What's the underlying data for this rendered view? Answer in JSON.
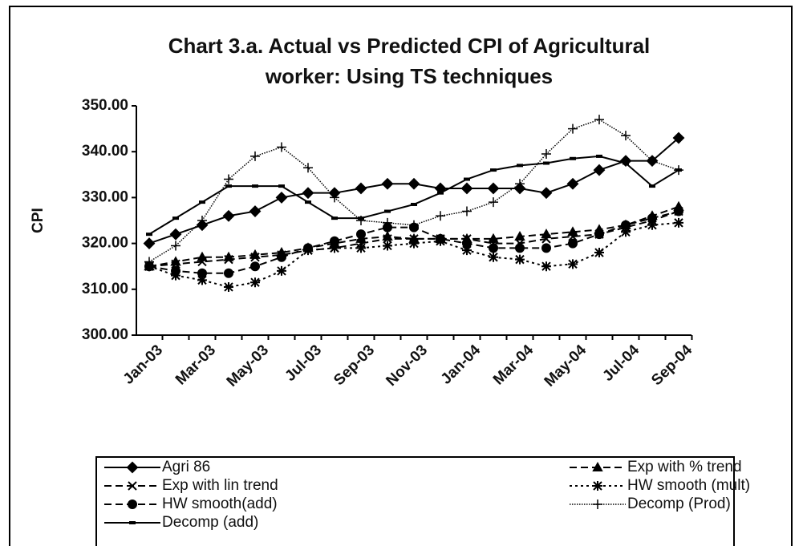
{
  "chart_data": {
    "type": "line",
    "title": "Chart 3.a. Actual vs Predicted CPI of Agricultural\nworker: Using TS techniques",
    "y_label": "CPI",
    "categories": [
      "Jan-03",
      null,
      "Mar-03",
      null,
      "May-03",
      null,
      "Jul-03",
      null,
      "Sep-03",
      null,
      "Nov-03",
      null,
      "Jan-04",
      null,
      "Mar-04",
      null,
      "May-04",
      null,
      "Jul-04",
      null,
      "Sep-04"
    ],
    "ylim": [
      300,
      350
    ],
    "yticks": [
      {
        "value": 300,
        "label": "300.00"
      },
      {
        "value": 310,
        "label": "310.00"
      },
      {
        "value": 320,
        "label": "320.00"
      },
      {
        "value": 330,
        "label": "330.00"
      },
      {
        "value": 340,
        "label": "340.00"
      },
      {
        "value": 350,
        "label": "350.00"
      }
    ],
    "legend": "bottom",
    "series": [
      {
        "name": "Agri 86",
        "color": "#000000",
        "marker": "diamond",
        "dash": "solid",
        "values": [
          320,
          322,
          324,
          326,
          327,
          330,
          331,
          331,
          332,
          333,
          333,
          332,
          332,
          332,
          332,
          331,
          333,
          336,
          338,
          338,
          343
        ]
      },
      {
        "name": "Exp with % trend",
        "color": "#000000",
        "marker": "triangle",
        "dash": "dashed",
        "values": [
          315,
          316,
          317,
          317,
          317.5,
          318,
          319,
          320,
          321,
          321.5,
          321,
          321,
          321,
          321,
          321.5,
          322,
          322.5,
          323,
          324,
          326,
          328
        ]
      },
      {
        "name": "Exp with lin trend",
        "color": "#000000",
        "marker": "x",
        "dash": "dashed",
        "values": [
          315,
          315.5,
          316,
          316.5,
          317,
          317.5,
          318.5,
          319,
          320,
          321,
          321,
          321,
          321,
          320,
          320,
          321,
          321.5,
          322,
          323.5,
          325,
          327
        ]
      },
      {
        "name": "HW smooth (mult)",
        "color": "#000000",
        "marker": "asterisk",
        "dash": "dotted",
        "values": [
          315,
          313,
          312,
          310.5,
          311.5,
          314,
          318.5,
          319,
          319,
          319.5,
          320,
          320.5,
          318.5,
          317,
          316.5,
          315,
          315.5,
          318,
          322.5,
          324,
          324.5
        ]
      },
      {
        "name": "HW smooth(add)",
        "color": "#000000",
        "marker": "circle",
        "dash": "dashed",
        "values": [
          315,
          314,
          313.5,
          313.5,
          315,
          317,
          319,
          320.5,
          322,
          323.5,
          323.5,
          321,
          320,
          319,
          319,
          319,
          320,
          322,
          324,
          325.5,
          327
        ]
      },
      {
        "name": "Decomp (Prod)",
        "color": "#000000",
        "marker": "plus",
        "dash": "thin",
        "values": [
          316,
          319.5,
          325,
          334,
          339,
          341,
          336.5,
          330,
          325,
          324.5,
          324,
          326,
          327,
          329,
          333,
          339.5,
          345,
          347,
          343.5,
          338,
          336
        ]
      },
      {
        "name": "Decomp (add)",
        "color": "#000000",
        "marker": "dash",
        "dash": "solid",
        "values": [
          322,
          325.5,
          329,
          332.5,
          332.5,
          332.5,
          329,
          325.5,
          325.5,
          327,
          328.5,
          331,
          334,
          336,
          337,
          337.5,
          338.5,
          339,
          337.5,
          332.5,
          336
        ]
      }
    ]
  }
}
